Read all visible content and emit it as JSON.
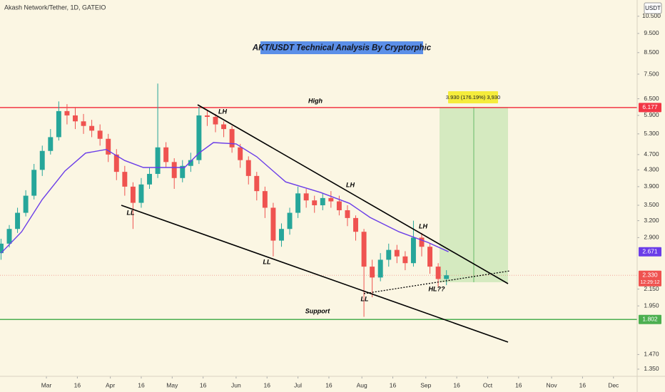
{
  "chart_data": {
    "type": "candlestick",
    "header": "Akash Network/Tether, 1D, GATEIO",
    "currency": "USDT",
    "title": "AKT/USDT Technical Analysis By Cryptorphic",
    "log_scale": true,
    "up_color": "#26a69a",
    "down_color": "#ef5350",
    "x": [
      -22,
      -18,
      -14,
      -10,
      -6,
      -2,
      2,
      6,
      10,
      14,
      18,
      22,
      26,
      30,
      34,
      38,
      42,
      46,
      50,
      54,
      58,
      62,
      66,
      70,
      74,
      78,
      82,
      86,
      90,
      94,
      98,
      102,
      106,
      110,
      114,
      118,
      122,
      126,
      130,
      134,
      138,
      142,
      146,
      150,
      154,
      158,
      162,
      166,
      170,
      174,
      178,
      182,
      186,
      190,
      194
    ],
    "open": [
      2.65,
      2.8,
      3.05,
      3.35,
      3.7,
      4.3,
      4.8,
      5.2,
      6.05,
      5.9,
      5.7,
      5.55,
      5.4,
      5.15,
      4.7,
      4.25,
      3.9,
      3.55,
      3.95,
      4.2,
      4.9,
      4.5,
      4.1,
      4.4,
      4.55,
      5.9,
      5.85,
      5.6,
      5.45,
      4.9,
      4.55,
      4.15,
      3.8,
      3.45,
      2.85,
      3.05,
      3.35,
      3.75,
      3.6,
      3.5,
      3.65,
      3.58,
      3.4,
      3.25,
      3.0,
      2.45,
      2.3,
      2.55,
      2.7,
      2.6,
      2.5,
      2.9,
      2.75,
      2.45,
      2.28
    ],
    "high": [
      2.88,
      3.12,
      3.45,
      3.82,
      4.45,
      4.95,
      5.45,
      6.4,
      6.3,
      6.2,
      5.95,
      5.75,
      5.6,
      5.3,
      4.85,
      4.4,
      4.0,
      4.1,
      4.35,
      7.1,
      5.05,
      4.6,
      4.55,
      4.75,
      6.2,
      6.1,
      5.95,
      5.7,
      5.55,
      5.0,
      4.65,
      4.25,
      3.9,
      3.55,
      3.15,
      3.45,
      3.9,
      3.85,
      3.7,
      3.75,
      3.8,
      3.7,
      3.5,
      3.3,
      3.05,
      2.55,
      2.65,
      2.8,
      2.78,
      2.68,
      3.2,
      2.98,
      2.8,
      2.5,
      2.4
    ],
    "low": [
      2.55,
      2.74,
      2.98,
      3.28,
      3.62,
      4.15,
      4.7,
      5.1,
      5.6,
      5.45,
      5.3,
      5.2,
      4.95,
      4.5,
      4.05,
      3.7,
      3.05,
      3.45,
      3.85,
      4.1,
      4.35,
      3.85,
      4.0,
      4.25,
      4.45,
      5.55,
      5.35,
      5.2,
      4.75,
      4.35,
      3.95,
      3.6,
      3.25,
      2.6,
      2.75,
      2.95,
      3.25,
      3.45,
      3.35,
      3.4,
      3.45,
      3.3,
      3.1,
      2.85,
      1.83,
      2.05,
      2.25,
      2.45,
      2.5,
      2.4,
      2.45,
      2.6,
      2.35,
      2.18,
      2.2
    ],
    "close": [
      2.8,
      3.05,
      3.35,
      3.7,
      4.3,
      4.8,
      5.2,
      6.05,
      5.9,
      5.7,
      5.55,
      5.4,
      5.15,
      4.7,
      4.25,
      3.9,
      3.55,
      3.95,
      4.2,
      4.9,
      4.5,
      4.1,
      4.4,
      4.55,
      5.9,
      5.85,
      5.6,
      5.45,
      4.9,
      4.55,
      4.15,
      3.8,
      3.45,
      2.85,
      3.05,
      3.35,
      3.75,
      3.6,
      3.5,
      3.65,
      3.58,
      3.4,
      3.25,
      3.0,
      2.45,
      2.3,
      2.55,
      2.7,
      2.6,
      2.5,
      2.9,
      2.75,
      2.45,
      2.28,
      2.33
    ],
    "moving_average": {
      "color": "#6a3de8",
      "x": [
        -22,
        -12,
        -2,
        9,
        19,
        29,
        38,
        47,
        57,
        67,
        74,
        81,
        92,
        102,
        116,
        133,
        147,
        157,
        171,
        185,
        195
      ],
      "values": [
        2.65,
        3.0,
        3.62,
        4.27,
        4.74,
        4.84,
        4.54,
        4.36,
        4.36,
        4.36,
        4.74,
        5.04,
        5.0,
        4.64,
        4.01,
        3.77,
        3.54,
        3.26,
        3.0,
        2.82,
        2.671
      ]
    },
    "hlines": [
      {
        "name": "High",
        "value": 6.177,
        "color": "#f23645"
      },
      {
        "name": "Support",
        "value": 1.802,
        "color": "#4caf50"
      }
    ],
    "last_price": 2.33,
    "last_price_label": "2.330",
    "countdown": "12:29:12",
    "annotations": {
      "lh": [
        "LH",
        "LH",
        "LH"
      ],
      "ll": [
        "LL",
        "LL",
        "LL"
      ],
      "hl": "HL??",
      "position": "3.930 (176.19%) 3,930"
    },
    "xlim": [
      -22.5,
      286.5
    ],
    "xticks": [
      {
        "value": 0,
        "label": "Mar"
      },
      {
        "value": 15,
        "label": "16"
      },
      {
        "value": 31,
        "label": "Apr"
      },
      {
        "value": 46,
        "label": "16"
      },
      {
        "value": 61,
        "label": "May"
      },
      {
        "value": 76,
        "label": "16"
      },
      {
        "value": 92,
        "label": "Jun"
      },
      {
        "value": 107,
        "label": "16"
      },
      {
        "value": 122,
        "label": "Jul"
      },
      {
        "value": 137,
        "label": "16"
      },
      {
        "value": 153,
        "label": "Aug"
      },
      {
        "value": 168,
        "label": "16"
      },
      {
        "value": 184,
        "label": "Sep"
      },
      {
        "value": 199,
        "label": "16"
      },
      {
        "value": 214,
        "label": "Oct"
      },
      {
        "value": 229,
        "label": "16"
      },
      {
        "value": 245,
        "label": "Nov"
      },
      {
        "value": 260,
        "label": "16"
      },
      {
        "value": 275,
        "label": "Dec"
      }
    ],
    "ylim": [
      1.295,
      11.54
    ],
    "yticks": [
      {
        "value": 10.5,
        "label": "10.500"
      },
      {
        "value": 9.5,
        "label": "9.500"
      },
      {
        "value": 8.5,
        "label": "8.500"
      },
      {
        "value": 7.5,
        "label": "7.500"
      },
      {
        "value": 6.5,
        "label": "6.500"
      },
      {
        "value": 5.9,
        "label": "5.900"
      },
      {
        "value": 5.3,
        "label": "5.300"
      },
      {
        "value": 4.7,
        "label": "4.700"
      },
      {
        "value": 4.3,
        "label": "4.300"
      },
      {
        "value": 3.9,
        "label": "3.900"
      },
      {
        "value": 3.5,
        "label": "3.500"
      },
      {
        "value": 3.2,
        "label": "3.200"
      },
      {
        "value": 2.9,
        "label": "2.900"
      },
      {
        "value": 2.15,
        "label": "2.150"
      },
      {
        "value": 1.95,
        "label": "1.950"
      },
      {
        "value": 1.47,
        "label": "1.470"
      },
      {
        "value": 1.35,
        "label": "1.350"
      }
    ]
  }
}
